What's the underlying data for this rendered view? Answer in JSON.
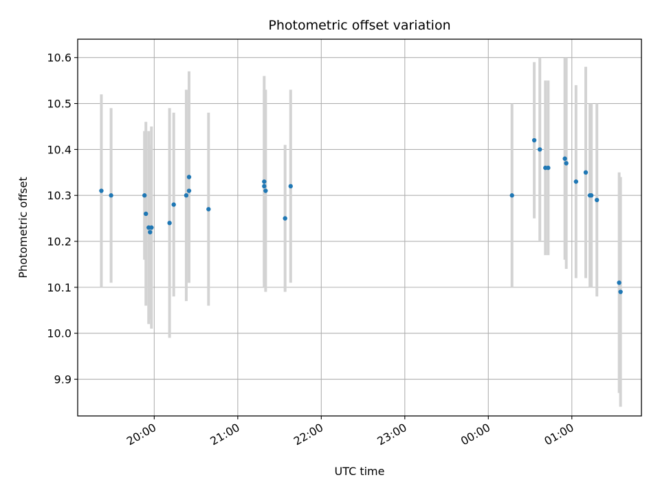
{
  "chart_data": {
    "type": "scatter",
    "title": "Photometric offset variation",
    "xlabel": "UTC time",
    "ylabel": "Photometric offset",
    "x_axis_kind": "time",
    "x_ticks": [
      "20:00",
      "21:00",
      "22:00",
      "23:00",
      "00:00",
      "01:00"
    ],
    "y_ticks": [
      "9.9",
      "10.0",
      "10.1",
      "10.2",
      "10.3",
      "10.4",
      "10.5",
      "10.6"
    ],
    "ylim": [
      9.82,
      10.64
    ],
    "xlim": [
      "19:05",
      "01:50"
    ],
    "grid": true,
    "colors": {
      "point": "#1f77b4",
      "errorbar": "#d3d3d3"
    },
    "series": [
      {
        "points": [
          {
            "x": "19:22",
            "y": 10.31,
            "yerr": 0.21
          },
          {
            "x": "19:29",
            "y": 10.3,
            "yerr": 0.19
          },
          {
            "x": "19:53",
            "y": 10.3,
            "yerr": 0.14
          },
          {
            "x": "19:54",
            "y": 10.26,
            "yerr": 0.2
          },
          {
            "x": "19:56",
            "y": 10.23,
            "yerr": 0.21
          },
          {
            "x": "19:57",
            "y": 10.22,
            "yerr": 0.19
          },
          {
            "x": "19:58",
            "y": 10.23,
            "yerr": 0.22
          },
          {
            "x": "20:11",
            "y": 10.24,
            "yerr": 0.25
          },
          {
            "x": "20:14",
            "y": 10.28,
            "yerr": 0.2
          },
          {
            "x": "20:23",
            "y": 10.3,
            "yerr": 0.23
          },
          {
            "x": "20:25",
            "y": 10.34,
            "yerr": 0.23
          },
          {
            "x": "20:25",
            "y": 10.31,
            "yerr": 0.2
          },
          {
            "x": "20:39",
            "y": 10.27,
            "yerr": 0.21
          },
          {
            "x": "21:19",
            "y": 10.33,
            "yerr": 0.23
          },
          {
            "x": "21:19",
            "y": 10.32,
            "yerr": 0.21
          },
          {
            "x": "21:20",
            "y": 10.31,
            "yerr": 0.22
          },
          {
            "x": "21:34",
            "y": 10.25,
            "yerr": 0.16
          },
          {
            "x": "21:38",
            "y": 10.32,
            "yerr": 0.21
          },
          {
            "x": "00:17",
            "y": 10.3,
            "yerr": 0.2
          },
          {
            "x": "00:33",
            "y": 10.42,
            "yerr": 0.17
          },
          {
            "x": "00:37",
            "y": 10.4,
            "yerr": 0.2
          },
          {
            "x": "00:41",
            "y": 10.36,
            "yerr": 0.19
          },
          {
            "x": "00:43",
            "y": 10.36,
            "yerr": 0.19
          },
          {
            "x": "00:55",
            "y": 10.38,
            "yerr": 0.22
          },
          {
            "x": "00:56",
            "y": 10.37,
            "yerr": 0.23
          },
          {
            "x": "01:03",
            "y": 10.33,
            "yerr": 0.21
          },
          {
            "x": "01:10",
            "y": 10.35,
            "yerr": 0.23
          },
          {
            "x": "01:13",
            "y": 10.3,
            "yerr": 0.2
          },
          {
            "x": "01:14",
            "y": 10.3,
            "yerr": 0.2
          },
          {
            "x": "01:18",
            "y": 10.29,
            "yerr": 0.21
          },
          {
            "x": "01:34",
            "y": 10.11,
            "yerr": 0.24
          },
          {
            "x": "01:35",
            "y": 10.09,
            "yerr": 0.25
          }
        ]
      }
    ]
  }
}
